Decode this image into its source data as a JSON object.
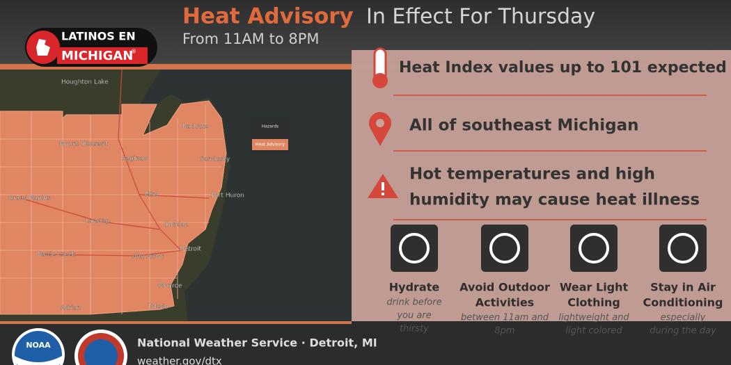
{
  "header": {
    "title_bold": "Heat Advisory",
    "title_rest": "In Effect For Thursday",
    "subtitle": "From 11AM to 8PM"
  },
  "logo": {
    "line1": "LATINOS EN",
    "line2": "MICHIGAN",
    "mark": "®"
  },
  "map": {
    "labels": [
      "Houghton Lake",
      "Mount Pleasant",
      "Saginaw",
      "Bad Axe",
      "Sandusky",
      "Grand Rapids",
      "Flint",
      "Port Huron",
      "Lansing",
      "Pontiac",
      "Battle Creek",
      "Ann Arbor",
      "Detroit",
      "Monroe",
      "Adrian",
      "Toledo"
    ],
    "legend_title": "Hazards",
    "legend_item": "Heat Advisory"
  },
  "info": [
    "Heat Index values  up to 101 expected",
    "All of southeast Michigan",
    "Hot temperatures and high",
    "humidity may cause heat illness"
  ],
  "tips": [
    {
      "title": [
        "Hydrate"
      ],
      "note": [
        "drink before",
        "you are",
        "thirsty"
      ]
    },
    {
      "title": [
        "Avoid Outdoor",
        "Activities"
      ],
      "note": [
        "between 11am and",
        "8pm"
      ]
    },
    {
      "title": [
        "Wear Light",
        "Clothing"
      ],
      "note": [
        "lightweight and",
        "light colored"
      ]
    },
    {
      "title": [
        "Stay in Air",
        "Conditioning"
      ],
      "note": [
        "especially",
        "during the day"
      ]
    }
  ],
  "footer": {
    "office": "National Weather Service · Detroit, MI",
    "url": "weather.gov/dtx",
    "noaa": "NOAA"
  }
}
